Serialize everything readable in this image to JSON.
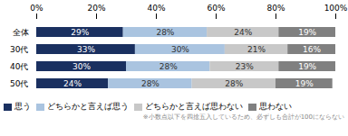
{
  "chart_data": {
    "type": "bar",
    "orientation": "horizontal",
    "stacked": true,
    "data_labels": true,
    "categories": [
      "全体",
      "30代",
      "40代",
      "50代"
    ],
    "series": [
      {
        "name": "思う",
        "color": "#1a3060",
        "values": [
          29,
          33,
          30,
          24
        ],
        "value_labels": [
          "29%",
          "33%",
          "30%",
          "24%"
        ]
      },
      {
        "name": "どちらかと言えば思う",
        "color": "#aac4e0",
        "values": [
          28,
          30,
          28,
          28
        ],
        "value_labels": [
          "28%",
          "30%",
          "28%",
          "28%"
        ]
      },
      {
        "name": "どちらかと言えば思わない",
        "color": "#c8c8c8",
        "values": [
          24,
          21,
          23,
          28
        ],
        "value_labels": [
          "24%",
          "21%",
          "23%",
          "28%"
        ]
      },
      {
        "name": "思わない",
        "color": "#808080",
        "values": [
          19,
          16,
          19,
          19
        ],
        "value_labels": [
          "19%",
          "16%",
          "19%",
          "19%"
        ]
      }
    ],
    "xlim": [
      0,
      100
    ],
    "xticks": [
      {
        "value": 0,
        "label": "0%"
      },
      {
        "value": 20,
        "label": "20%"
      },
      {
        "value": 40,
        "label": "40%"
      },
      {
        "value": 60,
        "label": "60%"
      },
      {
        "value": 80,
        "label": "80%"
      },
      {
        "value": 100,
        "label": "100%"
      }
    ],
    "legend": "bottom",
    "grid": false,
    "annotations": [
      "※小数点以下を四捨五入しているため、必ずしも合計が100にならない"
    ]
  }
}
